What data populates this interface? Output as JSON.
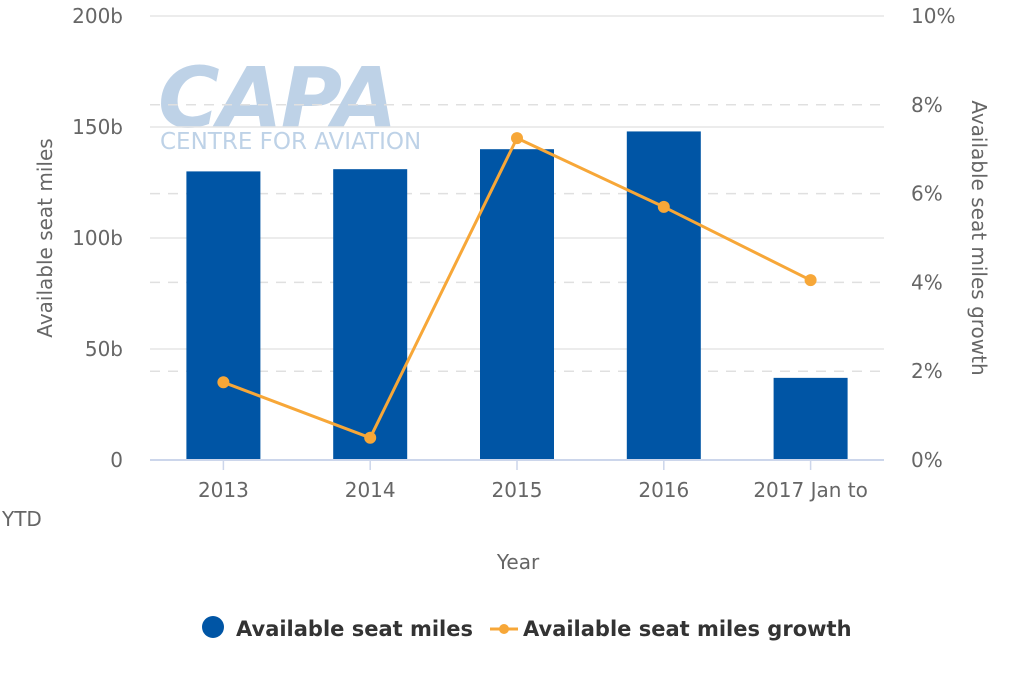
{
  "chart_data": {
    "type": "bar",
    "title": "",
    "categories": [
      "2013",
      "2014",
      "2015",
      "2016",
      "2017 Jan to YTD"
    ],
    "category_lines": [
      [
        "2013"
      ],
      [
        "2014"
      ],
      [
        "2015"
      ],
      [
        "2016"
      ],
      [
        "2017 Jan to",
        "YTD"
      ]
    ],
    "xlabel": "Year",
    "ylabel": "Available seat miles",
    "y2label": "Available seat miles growth",
    "ylim": [
      0,
      200
    ],
    "y2lim": [
      0,
      10
    ],
    "y_ticks": [
      0,
      50,
      100,
      150,
      200
    ],
    "y_tick_labels": [
      "0",
      "50b",
      "100b",
      "150b",
      "200b"
    ],
    "y2_ticks": [
      0,
      2,
      4,
      6,
      8,
      10
    ],
    "y2_tick_labels": [
      "0%",
      "2%",
      "4%",
      "6%",
      "8%",
      "10%"
    ],
    "grid": true,
    "legend_position": "bottom",
    "series": [
      {
        "name": "Available seat miles",
        "type": "bar",
        "axis": "left",
        "unit": "billion",
        "values": [
          130,
          131,
          140,
          148,
          37
        ],
        "color": "#0055a5"
      },
      {
        "name": "Available seat miles growth",
        "type": "line",
        "axis": "right",
        "unit": "%",
        "values": [
          1.75,
          0.5,
          7.25,
          5.7,
          4.05
        ],
        "color": "#f7a738"
      }
    ]
  },
  "watermark": {
    "logo_text": "CAPA",
    "tagline": "CENTRE FOR AVIATION",
    "color": "#a9c4e0"
  },
  "colors": {
    "axis_text": "#666666",
    "grid": "#e6e6e6",
    "grid_dash": "#e0e0e0",
    "axis_line": "#ccd6eb",
    "legend_text": "#333333"
  }
}
